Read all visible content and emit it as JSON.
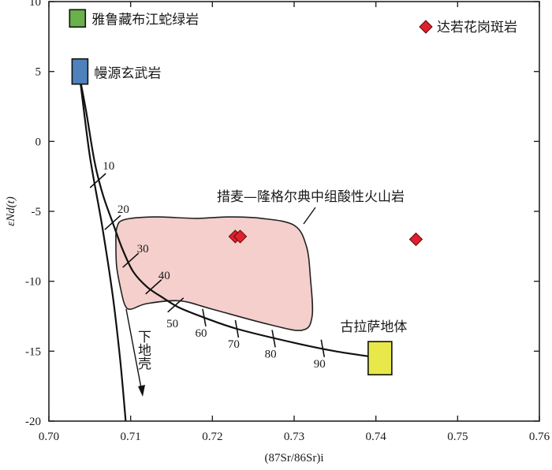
{
  "chart_data": {
    "type": "scatter",
    "title": "",
    "xlabel": "(87Sr/86Sr)i",
    "ylabel": "εNd(t)",
    "xlim": [
      0.7,
      0.76
    ],
    "ylim": [
      -20,
      10
    ],
    "xticks": [
      "0.70",
      "0.71",
      "0.72",
      "0.73",
      "0.74",
      "0.75",
      "0.76"
    ],
    "yticks": [
      "10",
      "5",
      "0",
      "-5",
      "-10",
      "-15",
      "-20"
    ],
    "legend": {
      "label": "达若花岗斑岩",
      "placement": "top-right",
      "color": "#e0202a"
    },
    "series": [
      {
        "name": "达若花岗斑岩",
        "marker": "diamond",
        "color": "#e0202a",
        "points": [
          {
            "x": 0.7228,
            "y": -6.8
          },
          {
            "x": 0.7234,
            "y": -6.8
          },
          {
            "x": 0.7449,
            "y": -7.0
          }
        ]
      }
    ],
    "endmembers": [
      {
        "label": "雅鲁藏布江蛇绿岩",
        "color": "#6ab04c",
        "x": 0.7035,
        "y": 8.8
      },
      {
        "label": "幔源玄武岩",
        "color": "#4f81bd",
        "x": 0.7038,
        "y": 5.0
      },
      {
        "label": "古拉萨地体",
        "color": "#e8e84a",
        "x": 0.7405,
        "y": -15.5
      }
    ],
    "field": {
      "label": "措麦—隆格尔典中组酸性火山岩",
      "fill": "#f4cfcc",
      "outline": [
        [
          0.7083,
          -6.2
        ],
        [
          0.7092,
          -5.6
        ],
        [
          0.713,
          -5.4
        ],
        [
          0.718,
          -5.5
        ],
        [
          0.722,
          -5.4
        ],
        [
          0.726,
          -5.5
        ],
        [
          0.73,
          -6.0
        ],
        [
          0.7315,
          -7.5
        ],
        [
          0.732,
          -9.8
        ],
        [
          0.7322,
          -12.5
        ],
        [
          0.731,
          -13.5
        ],
        [
          0.727,
          -13.1
        ],
        [
          0.72,
          -12.0
        ],
        [
          0.716,
          -11.4
        ],
        [
          0.712,
          -11.6
        ],
        [
          0.71,
          -12.0
        ],
        [
          0.7093,
          -11.7
        ],
        [
          0.7088,
          -10.6
        ],
        [
          0.7083,
          -9.0
        ],
        [
          0.7082,
          -7.5
        ]
      ]
    },
    "mixing_curve": {
      "points": [
        [
          0.7038,
          4.5
        ],
        [
          0.7046,
          2.0
        ],
        [
          0.7056,
          -1.5
        ],
        [
          0.7066,
          -3.8
        ],
        [
          0.7078,
          -5.8
        ],
        [
          0.709,
          -7.7
        ],
        [
          0.7103,
          -9.3
        ],
        [
          0.712,
          -10.4
        ],
        [
          0.714,
          -11.2
        ],
        [
          0.716,
          -11.9
        ],
        [
          0.719,
          -12.6
        ],
        [
          0.723,
          -13.4
        ],
        [
          0.73,
          -14.4
        ],
        [
          0.735,
          -15.0
        ],
        [
          0.7395,
          -15.4
        ]
      ],
      "ticks": [
        {
          "label": "10",
          "x": 0.706,
          "y": -2.8
        },
        {
          "label": "20",
          "x": 0.7078,
          "y": -5.8
        },
        {
          "label": "30",
          "x": 0.71,
          "y": -8.5
        },
        {
          "label": "40",
          "x": 0.7128,
          "y": -10.4
        },
        {
          "label": "50",
          "x": 0.7155,
          "y": -11.7
        },
        {
          "label": "60",
          "x": 0.719,
          "y": -12.6
        },
        {
          "label": "70",
          "x": 0.723,
          "y": -13.4
        },
        {
          "label": "80",
          "x": 0.7275,
          "y": -14.1
        },
        {
          "label": "90",
          "x": 0.7335,
          "y": -14.8
        }
      ]
    },
    "lower_crust_curve": {
      "label": "下地壳",
      "points": [
        [
          0.7038,
          4.5
        ],
        [
          0.705,
          -1.0
        ],
        [
          0.7065,
          -6.0
        ],
        [
          0.7078,
          -11.0
        ],
        [
          0.7087,
          -15.5
        ],
        [
          0.7094,
          -20.0
        ]
      ]
    }
  }
}
